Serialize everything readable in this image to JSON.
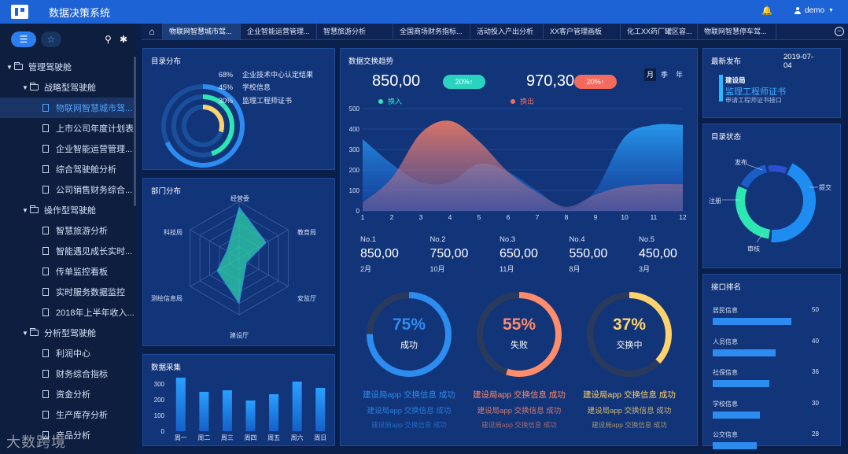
{
  "app": {
    "title": "数据决策系统",
    "user": "demo"
  },
  "sidebar": {
    "items": [
      {
        "label": "管理驾驶舱",
        "level": 0,
        "type": "folder"
      },
      {
        "label": "战略型驾驶舱",
        "level": 1,
        "type": "folder"
      },
      {
        "label": "物联网智慧城市驾...",
        "level": 2,
        "type": "doc",
        "active": true
      },
      {
        "label": "上市公司年度计划表",
        "level": 2,
        "type": "doc"
      },
      {
        "label": "企业智能运营管理...",
        "level": 2,
        "type": "doc"
      },
      {
        "label": "综合驾驶舱分析",
        "level": 2,
        "type": "doc"
      },
      {
        "label": "公司销售财务综合...",
        "level": 2,
        "type": "doc"
      },
      {
        "label": "操作型驾驶舱",
        "level": 1,
        "type": "folder"
      },
      {
        "label": "智慧旅游分析",
        "level": 2,
        "type": "doc"
      },
      {
        "label": "智能遇见成长实时...",
        "level": 2,
        "type": "doc"
      },
      {
        "label": "传单监控看板",
        "level": 2,
        "type": "doc"
      },
      {
        "label": "实时服务数据监控",
        "level": 2,
        "type": "doc"
      },
      {
        "label": "2018年上半年收入...",
        "level": 2,
        "type": "doc"
      },
      {
        "label": "分析型驾驶舱",
        "level": 1,
        "type": "folder"
      },
      {
        "label": "利润中心",
        "level": 2,
        "type": "doc"
      },
      {
        "label": "财务综合指标",
        "level": 2,
        "type": "doc"
      },
      {
        "label": "资金分析",
        "level": 2,
        "type": "doc"
      },
      {
        "label": "生产库存分析",
        "level": 2,
        "type": "doc"
      },
      {
        "label": "产品分析",
        "level": 2,
        "type": "doc"
      }
    ]
  },
  "tabs": [
    "物联网智慧城市驾...",
    "企业智能运营管理...",
    "智慧旅游分析",
    "全国商场财务指标...",
    "活动投入产出分析",
    "XX客户管理画板",
    "化工XX药厂罐区容...",
    "物联网智慧停车驾..."
  ],
  "catalog": {
    "title": "目录分布",
    "items": [
      {
        "pct": "68%",
        "label": "企业技术中心认定结果",
        "value": 0.68,
        "color": "#2d8cf0"
      },
      {
        "pct": "45%",
        "label": "学校信息",
        "value": 0.45,
        "color": "#2ee6b2"
      },
      {
        "pct": "30%",
        "label": "监理工程师证书",
        "value": 0.3,
        "color": "#ffd36b"
      }
    ]
  },
  "dept": {
    "title": "部门分布",
    "labels": [
      "经营委",
      "教育局",
      "安监厅",
      "建设厅",
      "测绘信息局",
      "科技局"
    ],
    "values": [
      0.9,
      0.55,
      0.15,
      0.8,
      0.45,
      0.25
    ]
  },
  "collect": {
    "title": "数据采集",
    "chart_data": {
      "type": "bar",
      "categories": [
        "周一",
        "周二",
        "周三",
        "周四",
        "周五",
        "周六",
        "周日"
      ],
      "values": [
        340,
        250,
        260,
        195,
        235,
        315,
        275
      ],
      "ylim": [
        0,
        350
      ],
      "ticks": [
        0,
        100,
        200,
        300
      ]
    }
  },
  "trend": {
    "title": "数据交换趋势",
    "in_value": "850,00",
    "in_change": "20%↑",
    "in_label": "换入",
    "out_value": "970,30",
    "out_change": "20%↑",
    "out_label": "换出",
    "periods": [
      "月",
      "季",
      "年"
    ],
    "chart_data": {
      "type": "area",
      "x": [
        1,
        2,
        3,
        4,
        5,
        6,
        7,
        8,
        9,
        10,
        11,
        12
      ],
      "series": [
        {
          "name": "换入",
          "values": [
            350,
            230,
            140,
            140,
            230,
            190,
            100,
            10,
            100,
            360,
            420,
            420
          ]
        },
        {
          "name": "换出",
          "values": [
            40,
            160,
            380,
            440,
            340,
            190,
            90,
            20,
            80,
            120,
            130,
            130
          ]
        }
      ],
      "ylim": [
        0,
        500
      ],
      "yticks": [
        0,
        100,
        200,
        300,
        400,
        500
      ]
    }
  },
  "ranks": [
    {
      "no": "No.1",
      "value": "850,00",
      "month": "2月"
    },
    {
      "no": "No.2",
      "value": "750,00",
      "month": "10月"
    },
    {
      "no": "No.3",
      "value": "650,00",
      "month": "11月"
    },
    {
      "no": "No.4",
      "value": "550,00",
      "month": "8月"
    },
    {
      "no": "No.5",
      "value": "450,00",
      "month": "3月"
    }
  ],
  "gauges": [
    {
      "pct": "75%",
      "value": 0.75,
      "label": "成功",
      "color": "#2d8cf0",
      "lines": [
        "建设局app 交换信息 成功",
        "建设局app 交换信息 成功",
        "建设局app 交换信息 成功"
      ]
    },
    {
      "pct": "55%",
      "value": 0.55,
      "label": "失败",
      "color": "#ff8c6b",
      "lines": [
        "建设局app 交换信息 成功",
        "建设局app 交换信息 成功",
        "建设局app 交换信息 成功"
      ]
    },
    {
      "pct": "37%",
      "value": 0.37,
      "label": "交换中",
      "color": "#ffd36b",
      "lines": [
        "建设局app 交换信息 成功",
        "建设局app 交换信息 成功",
        "建设局app 交换信息 成功"
      ]
    }
  ],
  "latest": {
    "title": "最新发布",
    "date": "2019-07-04",
    "dept": "建设局",
    "name": "监理工程师证书",
    "sub": "申请工程师证书接口"
  },
  "status": {
    "title": "目录状态",
    "labels": [
      "发布",
      "提交",
      "审核",
      "注册"
    ],
    "values": [
      0.1,
      0.45,
      0.3,
      0.15
    ]
  },
  "irank": {
    "title": "接口排名",
    "items": [
      {
        "label": "居民信息",
        "value": 50
      },
      {
        "label": "人员信息",
        "value": 40
      },
      {
        "label": "社保信息",
        "value": 36
      },
      {
        "label": "学校信息",
        "value": 30
      },
      {
        "label": "公交信息",
        "value": 28
      }
    ]
  },
  "watermark": "大数跨境"
}
